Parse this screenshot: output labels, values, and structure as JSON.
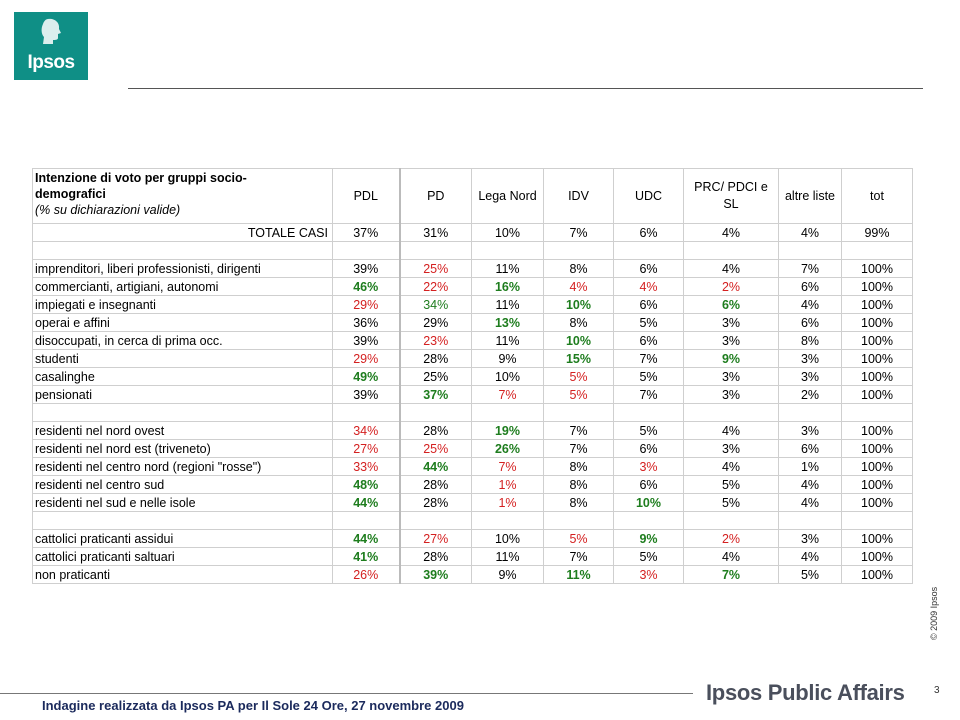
{
  "brand": {
    "logo_text": "Ipsos",
    "footer_brand": "Ipsos Public Affairs",
    "copyright": "© 2009 Ipsos",
    "page_number": "3",
    "footer_note": "Indagine realizzata da Ipsos PA per Il Sole 24 Ore, 27 novembre 2009",
    "colors": {
      "logo": "#0f8f86",
      "red": "#d42020",
      "green": "#1e7d1e"
    }
  },
  "table": {
    "title_line1": "Intenzione di voto per gruppi socio-",
    "title_line2": "demografici",
    "title_line3": "(% su dichiarazioni valide)",
    "columns": [
      "PDL",
      "PD",
      "Lega Nord",
      "IDV",
      "UDC",
      "PRC/ PDCI e SL",
      "altre liste",
      "tot"
    ],
    "rows": [
      {
        "label": "TOTALE CASI",
        "align": "right",
        "values": [
          [
            "37%",
            ""
          ],
          [
            "31%",
            ""
          ],
          [
            "10%",
            ""
          ],
          [
            "7%",
            ""
          ],
          [
            "6%",
            ""
          ],
          [
            "4%",
            ""
          ],
          [
            "4%",
            ""
          ],
          [
            "99%",
            ""
          ]
        ]
      },
      {
        "blank": true
      },
      {
        "label": "imprenditori, liberi professionisti, dirigenti",
        "values": [
          [
            "39%",
            ""
          ],
          [
            "25%",
            "red"
          ],
          [
            "11%",
            ""
          ],
          [
            "8%",
            ""
          ],
          [
            "6%",
            ""
          ],
          [
            "4%",
            ""
          ],
          [
            "7%",
            ""
          ],
          [
            "100%",
            ""
          ]
        ]
      },
      {
        "label": "commercianti, artigiani, autonomi",
        "values": [
          [
            "46%",
            "bg"
          ],
          [
            "22%",
            "red"
          ],
          [
            "16%",
            "bg"
          ],
          [
            "4%",
            "red"
          ],
          [
            "4%",
            "red"
          ],
          [
            "2%",
            "red"
          ],
          [
            "6%",
            ""
          ],
          [
            "100%",
            ""
          ]
        ]
      },
      {
        "label": "impiegati e insegnanti",
        "values": [
          [
            "29%",
            "red"
          ],
          [
            "34%",
            "green"
          ],
          [
            "11%",
            ""
          ],
          [
            "10%",
            "bg"
          ],
          [
            "6%",
            ""
          ],
          [
            "6%",
            "bg"
          ],
          [
            "4%",
            ""
          ],
          [
            "100%",
            ""
          ]
        ]
      },
      {
        "label": "operai e affini",
        "values": [
          [
            "36%",
            ""
          ],
          [
            "29%",
            ""
          ],
          [
            "13%",
            "bg"
          ],
          [
            "8%",
            ""
          ],
          [
            "5%",
            ""
          ],
          [
            "3%",
            ""
          ],
          [
            "6%",
            ""
          ],
          [
            "100%",
            ""
          ]
        ]
      },
      {
        "label": "disoccupati, in cerca di prima occ.",
        "values": [
          [
            "39%",
            ""
          ],
          [
            "23%",
            "red"
          ],
          [
            "11%",
            ""
          ],
          [
            "10%",
            "bg"
          ],
          [
            "6%",
            ""
          ],
          [
            "3%",
            ""
          ],
          [
            "8%",
            ""
          ],
          [
            "100%",
            ""
          ]
        ]
      },
      {
        "label": "studenti",
        "values": [
          [
            "29%",
            "red"
          ],
          [
            "28%",
            ""
          ],
          [
            "9%",
            ""
          ],
          [
            "15%",
            "bg"
          ],
          [
            "7%",
            ""
          ],
          [
            "9%",
            "bg"
          ],
          [
            "3%",
            ""
          ],
          [
            "100%",
            ""
          ]
        ]
      },
      {
        "label": "casalinghe",
        "values": [
          [
            "49%",
            "bg"
          ],
          [
            "25%",
            ""
          ],
          [
            "10%",
            ""
          ],
          [
            "5%",
            "red"
          ],
          [
            "5%",
            ""
          ],
          [
            "3%",
            ""
          ],
          [
            "3%",
            ""
          ],
          [
            "100%",
            ""
          ]
        ]
      },
      {
        "label": "pensionati",
        "values": [
          [
            "39%",
            ""
          ],
          [
            "37%",
            "bg"
          ],
          [
            "7%",
            "red"
          ],
          [
            "5%",
            "red"
          ],
          [
            "7%",
            ""
          ],
          [
            "3%",
            ""
          ],
          [
            "2%",
            ""
          ],
          [
            "100%",
            ""
          ]
        ]
      },
      {
        "blank": true
      },
      {
        "label": "residenti nel nord ovest",
        "values": [
          [
            "34%",
            "red"
          ],
          [
            "28%",
            ""
          ],
          [
            "19%",
            "bg"
          ],
          [
            "7%",
            ""
          ],
          [
            "5%",
            ""
          ],
          [
            "4%",
            ""
          ],
          [
            "3%",
            ""
          ],
          [
            "100%",
            ""
          ]
        ]
      },
      {
        "label": "residenti nel nord est (triveneto)",
        "values": [
          [
            "27%",
            "red"
          ],
          [
            "25%",
            "red"
          ],
          [
            "26%",
            "bg"
          ],
          [
            "7%",
            ""
          ],
          [
            "6%",
            ""
          ],
          [
            "3%",
            ""
          ],
          [
            "6%",
            ""
          ],
          [
            "100%",
            ""
          ]
        ]
      },
      {
        "label": "residenti nel centro nord (regioni \"rosse\")",
        "values": [
          [
            "33%",
            "red"
          ],
          [
            "44%",
            "bg"
          ],
          [
            "7%",
            "red"
          ],
          [
            "8%",
            ""
          ],
          [
            "3%",
            "red"
          ],
          [
            "4%",
            ""
          ],
          [
            "1%",
            ""
          ],
          [
            "100%",
            ""
          ]
        ]
      },
      {
        "label": "residenti nel centro sud",
        "values": [
          [
            "48%",
            "bg"
          ],
          [
            "28%",
            ""
          ],
          [
            "1%",
            "red"
          ],
          [
            "8%",
            ""
          ],
          [
            "6%",
            ""
          ],
          [
            "5%",
            ""
          ],
          [
            "4%",
            ""
          ],
          [
            "100%",
            ""
          ]
        ]
      },
      {
        "label": "residenti nel sud e nelle isole",
        "values": [
          [
            "44%",
            "bg"
          ],
          [
            "28%",
            ""
          ],
          [
            "1%",
            "red"
          ],
          [
            "8%",
            ""
          ],
          [
            "10%",
            "bg"
          ],
          [
            "5%",
            ""
          ],
          [
            "4%",
            ""
          ],
          [
            "100%",
            ""
          ]
        ]
      },
      {
        "blank": true
      },
      {
        "label": "cattolici praticanti assidui",
        "values": [
          [
            "44%",
            "bg"
          ],
          [
            "27%",
            "red"
          ],
          [
            "10%",
            ""
          ],
          [
            "5%",
            "red"
          ],
          [
            "9%",
            "bg"
          ],
          [
            "2%",
            "red"
          ],
          [
            "3%",
            ""
          ],
          [
            "100%",
            ""
          ]
        ]
      },
      {
        "label": "cattolici praticanti saltuari",
        "values": [
          [
            "41%",
            "bg"
          ],
          [
            "28%",
            ""
          ],
          [
            "11%",
            ""
          ],
          [
            "7%",
            ""
          ],
          [
            "5%",
            ""
          ],
          [
            "4%",
            ""
          ],
          [
            "4%",
            ""
          ],
          [
            "100%",
            ""
          ]
        ]
      },
      {
        "label": "non praticanti",
        "values": [
          [
            "26%",
            "red"
          ],
          [
            "39%",
            "bg"
          ],
          [
            "9%",
            ""
          ],
          [
            "11%",
            "bg"
          ],
          [
            "3%",
            "red"
          ],
          [
            "7%",
            "bg"
          ],
          [
            "5%",
            ""
          ],
          [
            "100%",
            ""
          ]
        ]
      }
    ]
  }
}
